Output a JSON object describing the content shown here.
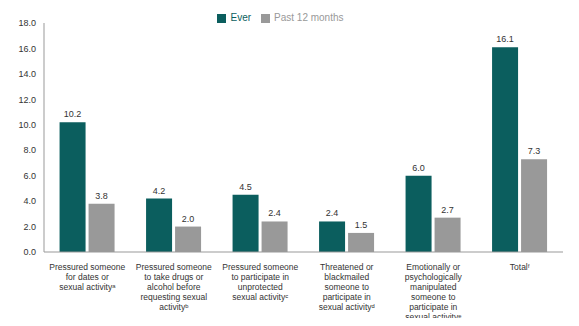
{
  "chart_data": {
    "type": "bar",
    "categories": [
      "Pressured someone for dates or sexual activityᵃ",
      "Pressured someone to take drugs or alcohol before requesting sexual activityᵇ",
      "Pressured someone to participate in unprotected sexual activityᶜ",
      "Threatened or blackmailed someone to participate in sexual activityᵈ",
      "Emotionally or psychologically manipulated someone to participate in sexual activityᵉ",
      "Totalᶠ"
    ],
    "series": [
      {
        "name": "Ever",
        "color": "#0b5e5e",
        "values": [
          10.2,
          4.2,
          4.5,
          2.4,
          6.0,
          16.1
        ],
        "value_labels": [
          "10.2",
          "4.2",
          "4.5",
          "2.4",
          "6.0",
          "16.1"
        ]
      },
      {
        "name": "Past 12 months",
        "color": "#999999",
        "values": [
          3.8,
          2.0,
          2.4,
          1.5,
          2.7,
          7.3
        ],
        "value_labels": [
          "3.8",
          "2.0",
          "2.4",
          "1.5",
          "2.7",
          "7.3"
        ]
      }
    ],
    "ylim": [
      0,
      18
    ],
    "yticks": [
      {
        "value": 0,
        "label": "0.0"
      },
      {
        "value": 2,
        "label": "2.0"
      },
      {
        "value": 4,
        "label": "4.0"
      },
      {
        "value": 6,
        "label": "6.0"
      },
      {
        "value": 8,
        "label": "8.0"
      },
      {
        "value": 10,
        "label": "10.0"
      },
      {
        "value": 12,
        "label": "12.0"
      },
      {
        "value": 14,
        "label": "14.0"
      },
      {
        "value": 16,
        "label": "16.0"
      },
      {
        "value": 18,
        "label": "18.0"
      }
    ],
    "grid": false,
    "legend": "top",
    "data_labels": true
  }
}
